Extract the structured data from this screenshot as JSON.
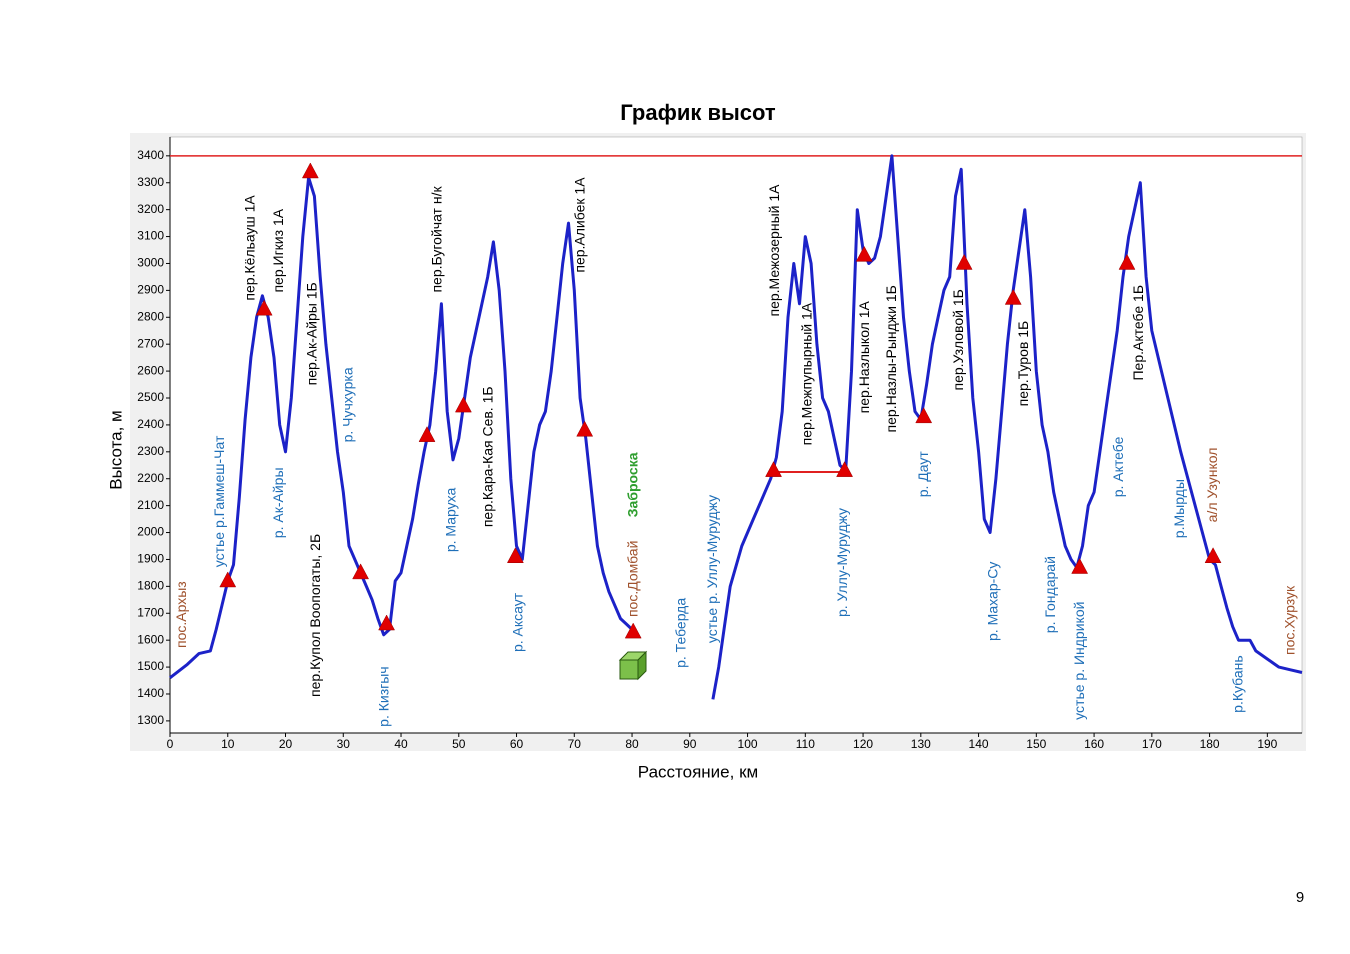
{
  "chart_data": {
    "type": "line",
    "title": "График высот",
    "xlabel": "Расстояние, км",
    "ylabel": "Высота, м",
    "xlim": [
      0,
      196
    ],
    "ylim": [
      1255,
      3470
    ],
    "xticks": [
      0,
      10,
      20,
      30,
      40,
      50,
      60,
      70,
      80,
      90,
      100,
      110,
      120,
      130,
      140,
      150,
      160,
      170,
      180,
      190
    ],
    "yticks": [
      1300,
      1400,
      1500,
      1600,
      1700,
      1800,
      1900,
      2000,
      2100,
      2200,
      2300,
      2400,
      2500,
      2600,
      2700,
      2800,
      2900,
      3000,
      3100,
      3200,
      3300,
      3400
    ],
    "hline": {
      "value": 3400,
      "color": "#e02020"
    },
    "series": [
      {
        "color": "#1c22c8",
        "x": [
          0,
          3,
          5,
          7,
          8,
          9,
          10,
          11,
          12,
          13,
          14,
          15,
          16,
          17,
          18,
          19,
          20,
          21,
          22,
          23,
          24,
          25,
          26,
          27,
          28,
          29,
          30,
          31,
          32,
          33,
          34,
          35,
          36,
          37,
          38,
          39,
          40,
          41,
          42,
          43,
          44,
          45,
          46,
          47,
          48,
          49,
          50,
          51,
          52,
          53,
          54,
          55,
          56,
          57,
          58,
          59,
          60,
          61,
          62,
          63,
          64,
          65,
          66,
          67,
          68,
          69,
          70,
          71,
          72,
          73,
          74,
          75,
          76,
          77,
          78,
          79,
          80,
          87,
          94,
          95,
          96,
          97,
          99,
          101,
          103,
          104,
          105,
          106,
          107,
          108,
          109,
          110,
          111,
          112,
          113,
          114,
          115,
          116,
          117,
          118,
          119,
          120,
          121,
          122,
          123,
          124,
          125,
          126,
          127,
          128,
          129,
          130,
          131,
          132,
          133,
          134,
          135,
          136,
          137,
          138,
          139,
          140,
          141,
          142,
          143,
          144,
          145,
          146,
          147,
          148,
          149,
          150,
          151,
          152,
          153,
          154,
          155,
          156,
          157,
          158,
          159,
          160,
          161,
          162,
          163,
          164,
          165,
          166,
          167,
          168,
          169,
          170,
          175,
          180,
          181,
          182,
          183,
          184,
          185,
          187,
          188,
          190,
          192,
          194,
          196
        ],
        "values": [
          1460,
          1510,
          1550,
          1560,
          1640,
          1730,
          1820,
          1880,
          2130,
          2420,
          2650,
          2800,
          2880,
          2800,
          2650,
          2400,
          2300,
          2500,
          2800,
          3100,
          3320,
          3250,
          2950,
          2700,
          2500,
          2300,
          2150,
          1950,
          1900,
          1850,
          1800,
          1750,
          1680,
          1620,
          1640,
          1820,
          1850,
          1950,
          2050,
          2180,
          2300,
          2400,
          2600,
          2850,
          2450,
          2270,
          2350,
          2500,
          2650,
          2750,
          2850,
          2950,
          3080,
          2900,
          2600,
          2200,
          1950,
          1900,
          2100,
          2300,
          2400,
          2450,
          2600,
          2800,
          3000,
          3150,
          2900,
          2500,
          2350,
          2150,
          1950,
          1850,
          1780,
          1730,
          1680,
          1660,
          1640,
          null,
          1380,
          1500,
          1650,
          1800,
          1950,
          2050,
          2150,
          2200,
          2280,
          2450,
          2800,
          3000,
          2850,
          3100,
          3000,
          2700,
          2500,
          2450,
          2350,
          2250,
          2230,
          2600,
          3200,
          3050,
          3000,
          3020,
          3100,
          3250,
          3400,
          3100,
          2800,
          2600,
          2450,
          2420,
          2550,
          2700,
          2800,
          2900,
          2950,
          3250,
          3350,
          2850,
          2500,
          2300,
          2050,
          2000,
          2200,
          2450,
          2700,
          2900,
          3050,
          3200,
          2950,
          2600,
          2400,
          2300,
          2150,
          2050,
          1950,
          1900,
          1870,
          1950,
          2100,
          2150,
          2300,
          2450,
          2600,
          2750,
          2950,
          3100,
          3200,
          3300,
          2950,
          2750,
          2300,
          1900,
          1880,
          1800,
          1720,
          1650,
          1600,
          1600,
          1560,
          1530,
          1500,
          1490,
          1480
        ]
      },
      {
        "color": "#e02020",
        "x": [
          104.5,
          116.8
        ],
        "values": [
          2225,
          2225
        ]
      }
    ],
    "markers": {
      "color": "#e00000",
      "x": [
        10,
        16.3,
        24.3,
        33,
        37.5,
        44.5,
        50.8,
        59.8,
        71.8,
        80.2,
        104.5,
        116.8,
        120.2,
        130.5,
        137.5,
        146,
        157.5,
        165.7,
        180.6
      ],
      "y": [
        1820,
        2830,
        3340,
        1850,
        1660,
        2360,
        2470,
        1910,
        2380,
        1630,
        2230,
        2230,
        3030,
        2430,
        3000,
        2870,
        1870,
        3000,
        1910
      ]
    },
    "annotations": [
      {
        "text": "пос.Архыз",
        "x": 2.1,
        "y": 1571,
        "color": "#a0522d"
      },
      {
        "text": "устье р.Гаммеш-Чат",
        "x": 8.7,
        "y": 1871,
        "color": "#1f6fb8"
      },
      {
        "text": "пер.Кёльауш 1А",
        "x": 14.0,
        "y": 2862,
        "color": "#000000"
      },
      {
        "text": "пер.Игкиз 1А",
        "x": 18.9,
        "y": 2892,
        "color": "#000000"
      },
      {
        "text": "р. Ак-Айры",
        "x": 18.9,
        "y": 1979,
        "color": "#1f6fb8"
      },
      {
        "text": "пер.Ак-Айры 1Б",
        "x": 24.7,
        "y": 2547,
        "color": "#000000"
      },
      {
        "text": "пер.Купол Воопогаты, 2Б",
        "x": 25.3,
        "y": 1389,
        "color": "#000000"
      },
      {
        "text": "р. Чучхурка",
        "x": 31.0,
        "y": 2335,
        "color": "#1f6fb8"
      },
      {
        "text": "р. Кизгыч",
        "x": 37.2,
        "y": 1278,
        "color": "#1f6fb8"
      },
      {
        "text": "пер.Бугойчат н/к",
        "x": 46.4,
        "y": 2892,
        "color": "#000000"
      },
      {
        "text": "р. Маруха",
        "x": 48.8,
        "y": 1927,
        "color": "#1f6fb8"
      },
      {
        "text": "пер.Кара-Кая Сев. 1Б",
        "x": 55.2,
        "y": 2020,
        "color": "#000000"
      },
      {
        "text": "р. Аксаут",
        "x": 60.4,
        "y": 1556,
        "color": "#1f6fb8"
      },
      {
        "text": "пер.Алибек 1А",
        "x": 71.1,
        "y": 2966,
        "color": "#000000"
      },
      {
        "text": "пос.Домбай",
        "x": 80.3,
        "y": 1686,
        "color": "#a0522d"
      },
      {
        "text": "Заброска",
        "x": 80.3,
        "y": 2057,
        "color": "#2e9e2e",
        "bold": true
      },
      {
        "text": "р. Теберда",
        "x": 88.6,
        "y": 1497,
        "color": "#1f6fb8"
      },
      {
        "text": "устье р. Уллу-Муруджу",
        "x": 94.1,
        "y": 1589,
        "color": "#1f6fb8"
      },
      {
        "text": "пер.Межозерный 1А",
        "x": 104.8,
        "y": 2803,
        "color": "#000000"
      },
      {
        "text": "пер.Межпупырный 1А",
        "x": 110.4,
        "y": 2324,
        "color": "#000000"
      },
      {
        "text": "р. Уллу-Муруджу",
        "x": 116.6,
        "y": 1686,
        "color": "#1f6fb8"
      },
      {
        "text": "пер.Назлыкол 1А",
        "x": 120.4,
        "y": 2443,
        "color": "#000000"
      },
      {
        "text": "пер.Назлы-Рынджи 1Б",
        "x": 125.1,
        "y": 2372,
        "color": "#000000"
      },
      {
        "text": "р. Даут",
        "x": 130.6,
        "y": 2131,
        "color": "#1f6fb8"
      },
      {
        "text": "пер.Узловой 1Б",
        "x": 136.7,
        "y": 2528,
        "color": "#000000"
      },
      {
        "text": "р. Махар-Су",
        "x": 142.6,
        "y": 1597,
        "color": "#1f6fb8"
      },
      {
        "text": "пер.Туров 1Б",
        "x": 147.9,
        "y": 2469,
        "color": "#000000"
      },
      {
        "text": "р. Гондарай",
        "x": 152.6,
        "y": 1626,
        "color": "#1f6fb8"
      },
      {
        "text": "устье р. Индрикой",
        "x": 157.6,
        "y": 1304,
        "color": "#1f6fb8"
      },
      {
        "text": "р. Актебе",
        "x": 164.4,
        "y": 2131,
        "color": "#1f6fb8"
      },
      {
        "text": "Пер.Актебе 1Б",
        "x": 167.8,
        "y": 2565,
        "color": "#000000"
      },
      {
        "text": "р.Мырды",
        "x": 174.9,
        "y": 1979,
        "color": "#1f6fb8"
      },
      {
        "text": "а/л Узункол",
        "x": 180.6,
        "y": 2038,
        "color": "#a0522d"
      },
      {
        "text": "р.Кубань",
        "x": 185.1,
        "y": 1330,
        "color": "#1f6fb8"
      },
      {
        "text": "пос.Хурзук",
        "x": 194.1,
        "y": 1545,
        "color": "#a0522d"
      }
    ]
  },
  "page_number": "9"
}
